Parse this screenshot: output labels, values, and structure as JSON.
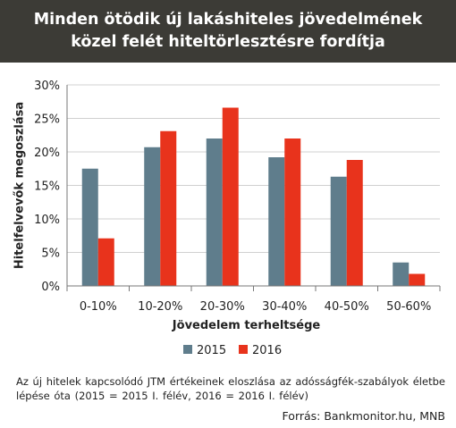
{
  "title": "Minden ötödik új lakáshiteles jövedelmének közel felét hiteltörlesztésre fordítja",
  "note": "Az új hitelek kapcsolódó JTM értékeinek eloszlása az adósságfék-szabályok életbe lépése óta (2015 = 2015 I. félév, 2016 = 2016 I. félév)",
  "source": "Forrás: Bankmonitor.hu, MNB",
  "chart_data": {
    "type": "bar",
    "title": "Minden ötödik új lakáshiteles jövedelmének közel felét hiteltörlesztésre fordítja",
    "xlabel": "Jövedelem terheltsége",
    "ylabel": "Hitelfelvevők megoszlása",
    "categories": [
      "0-10%",
      "10-20%",
      "20-30%",
      "30-40%",
      "40-50%",
      "50-60%"
    ],
    "series": [
      {
        "name": "2015",
        "color": "#5f7d8c",
        "values": [
          17.5,
          20.7,
          22.0,
          19.2,
          16.3,
          3.5
        ]
      },
      {
        "name": "2016",
        "color": "#e8331c",
        "values": [
          7.1,
          23.1,
          26.6,
          22.0,
          18.8,
          1.8
        ]
      }
    ],
    "ylim": [
      0,
      30
    ],
    "yticks": [
      0,
      5,
      10,
      15,
      20,
      25,
      30
    ],
    "ytick_labels": [
      "0%",
      "5%",
      "10%",
      "15%",
      "20%",
      "25%",
      "30%"
    ],
    "grid": true,
    "legend_position": "bottom"
  }
}
